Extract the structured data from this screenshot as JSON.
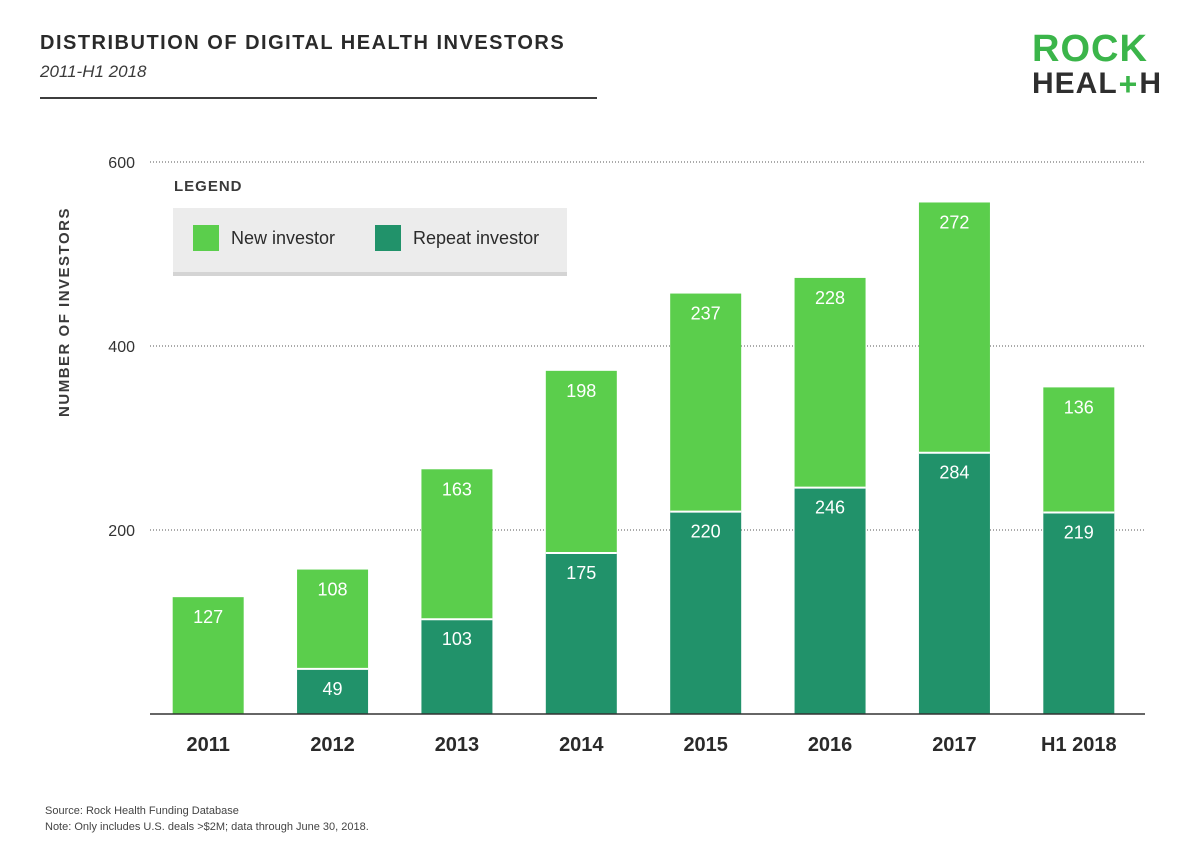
{
  "header": {
    "title": "DISTRIBUTION OF DIGITAL HEALTH INVESTORS",
    "subtitle": "2011-H1 2018"
  },
  "logo": {
    "line1": "ROCK",
    "line2_a": "HEAL",
    "line2_plus": "+",
    "line2_b": "H"
  },
  "legend": {
    "title": "LEGEND",
    "items": [
      {
        "label": "New investor",
        "color": "#5bce4c"
      },
      {
        "label": "Repeat investor",
        "color": "#21926a"
      }
    ]
  },
  "footer": {
    "source": "Source: Rock Health Funding Database",
    "note": "Note: Only includes U.S. deals >$2M; data through June 30, 2018."
  },
  "chart_data": {
    "type": "bar",
    "stacked": true,
    "title": "DISTRIBUTION OF DIGITAL HEALTH INVESTORS",
    "subtitle": "2011-H1 2018",
    "xlabel": "",
    "ylabel": "NUMBER OF INVESTORS",
    "ylim": [
      0,
      600
    ],
    "yticks": [
      200,
      400,
      600
    ],
    "grid": true,
    "legend_position": "top-left",
    "categories": [
      "2011",
      "2012",
      "2013",
      "2014",
      "2015",
      "2016",
      "2017",
      "H1 2018"
    ],
    "series": [
      {
        "name": "Repeat investor",
        "color": "#21926a",
        "values": [
          0,
          49,
          103,
          175,
          220,
          246,
          284,
          219
        ]
      },
      {
        "name": "New investor",
        "color": "#5bce4c",
        "values": [
          127,
          108,
          163,
          198,
          237,
          228,
          272,
          136
        ]
      }
    ]
  }
}
